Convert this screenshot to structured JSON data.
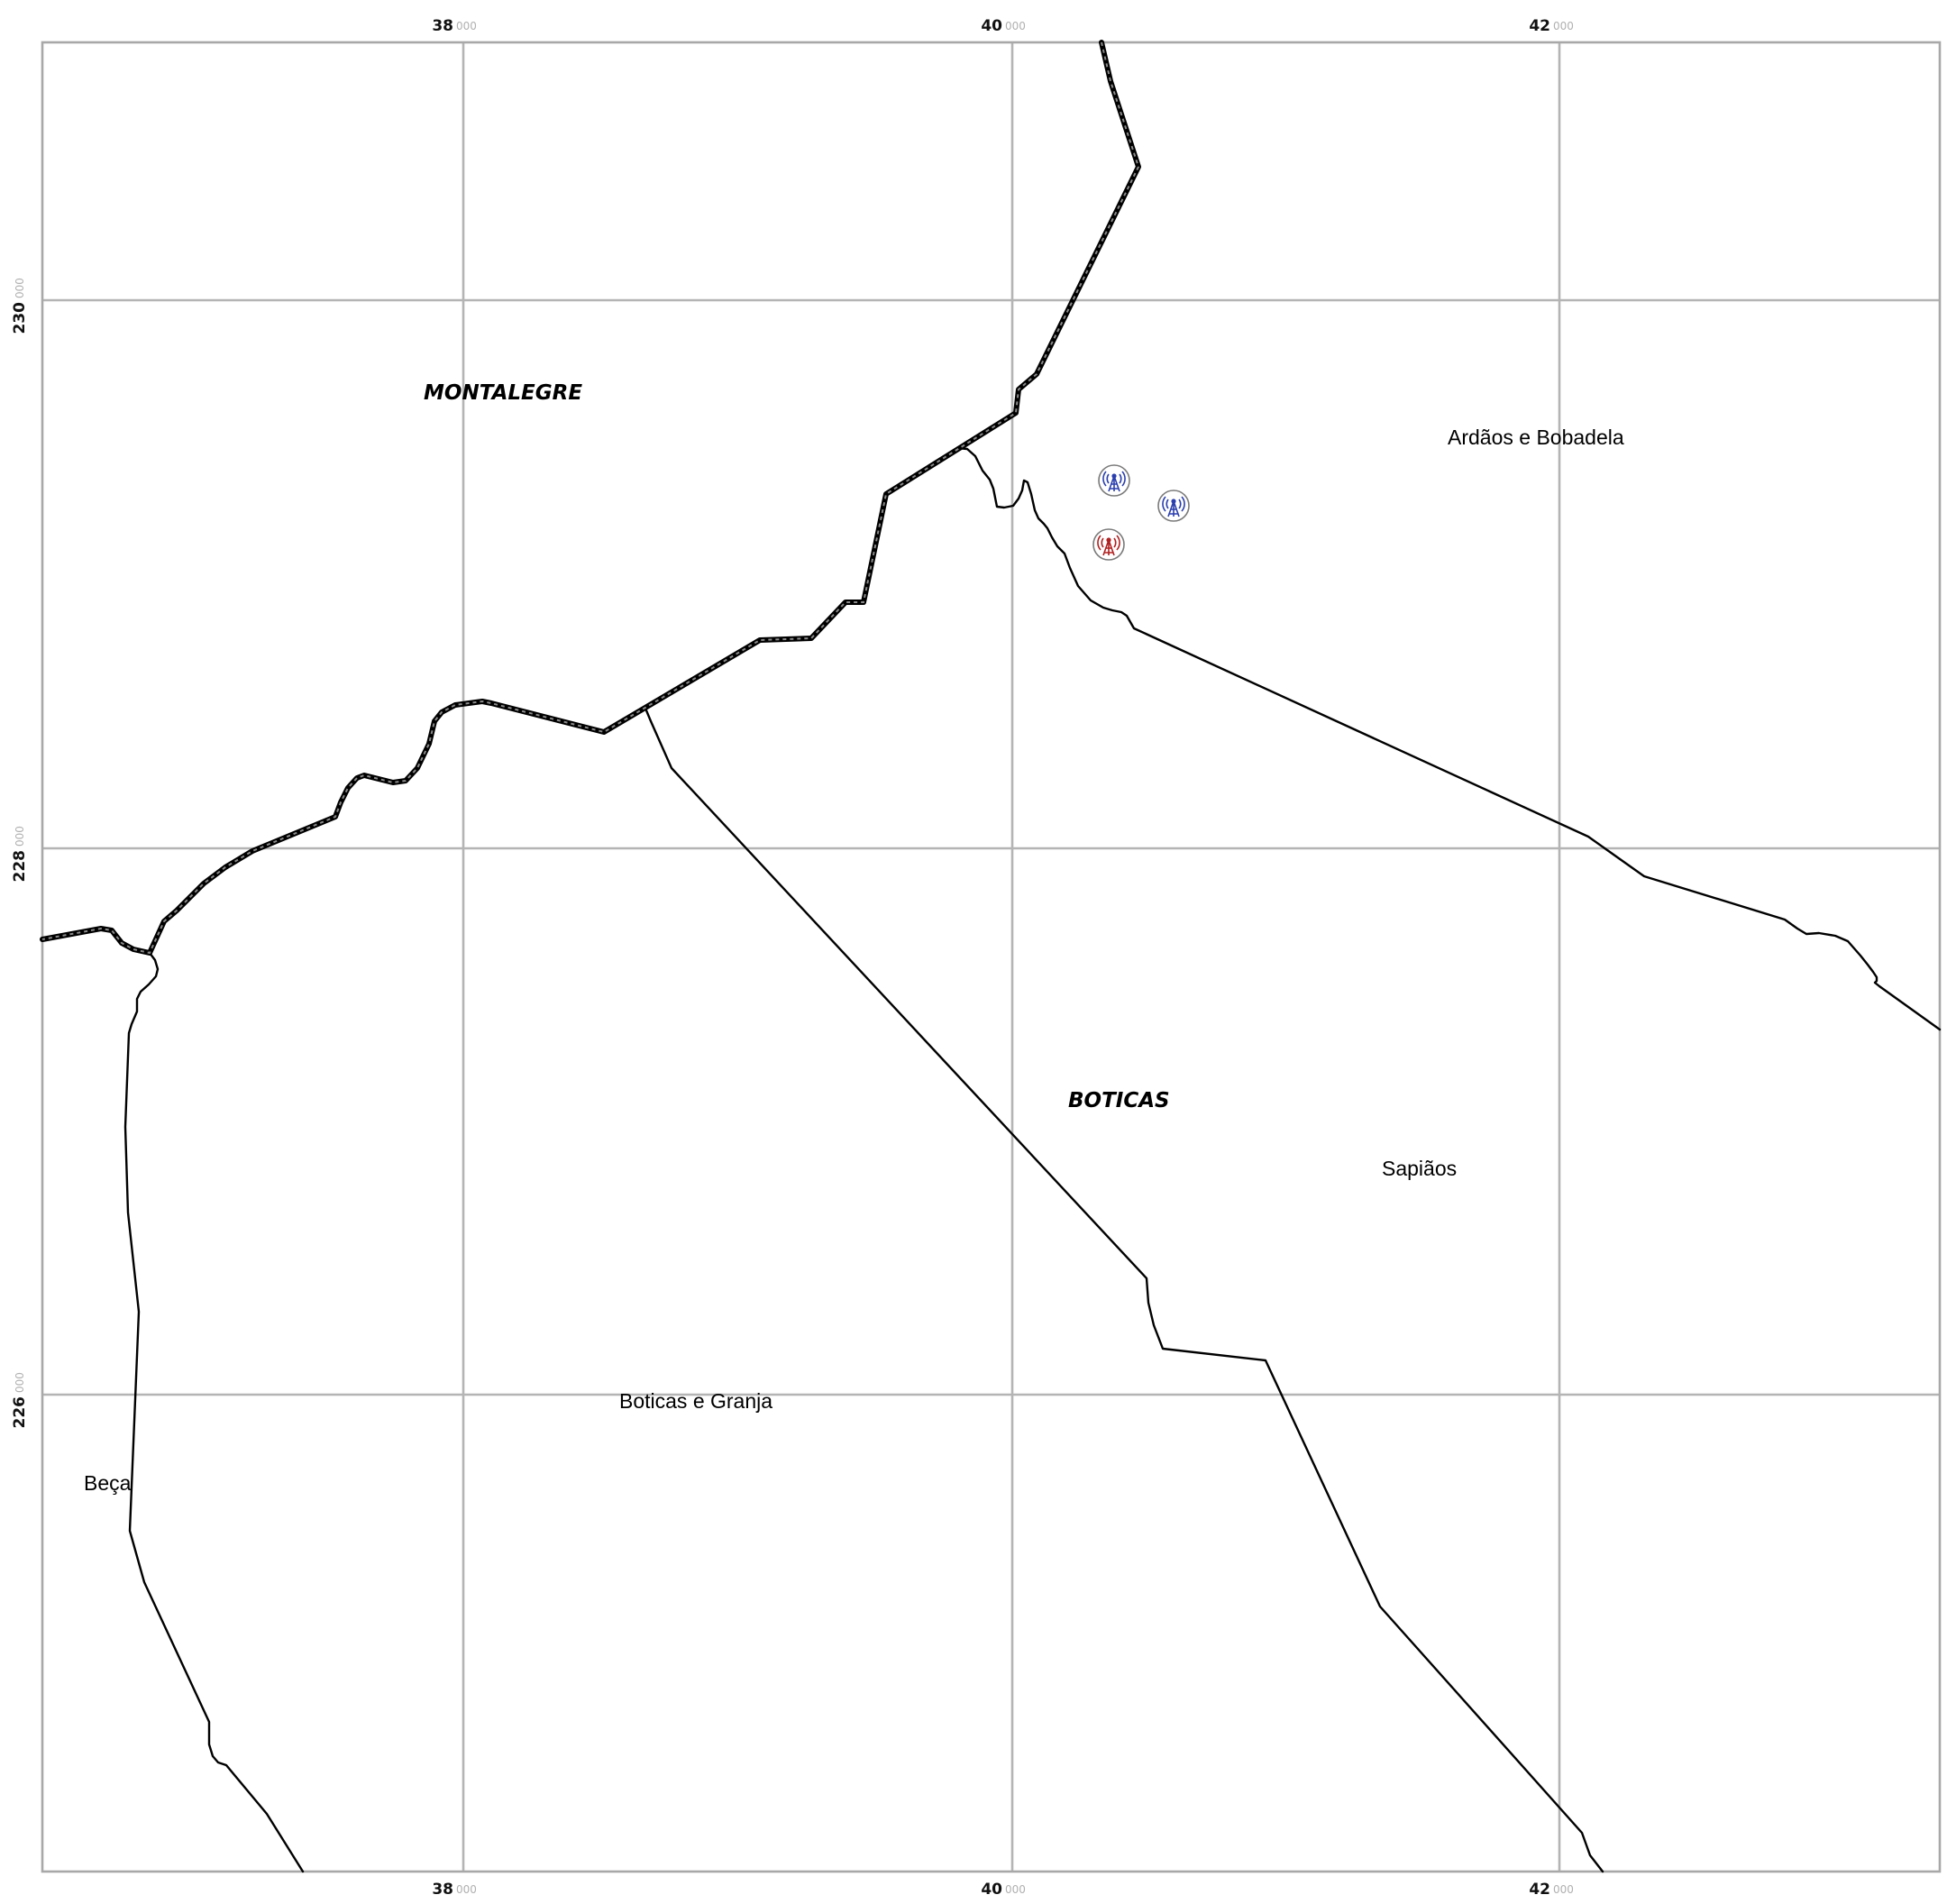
{
  "map": {
    "x_ticks": [
      {
        "main": "38",
        "sub": "000"
      },
      {
        "main": "40",
        "sub": "000"
      },
      {
        "main": "42",
        "sub": "000"
      }
    ],
    "y_ticks": [
      {
        "main": "230",
        "sub": "000"
      },
      {
        "main": "228",
        "sub": "000"
      },
      {
        "main": "226",
        "sub": "000"
      }
    ],
    "municipality_labels": [
      "MONTALEGRE",
      "BOTICAS"
    ],
    "parish_labels": [
      "Ardãos e Bobadela",
      "Sapiãos",
      "Boticas e Granja",
      "Beça"
    ],
    "antennas": [
      {
        "icon": "antenna-tower-icon",
        "color": "#2b3fae"
      },
      {
        "icon": "antenna-tower-icon",
        "color": "#2b3fae"
      },
      {
        "icon": "antenna-tower-icon",
        "color": "#b02020"
      }
    ]
  }
}
